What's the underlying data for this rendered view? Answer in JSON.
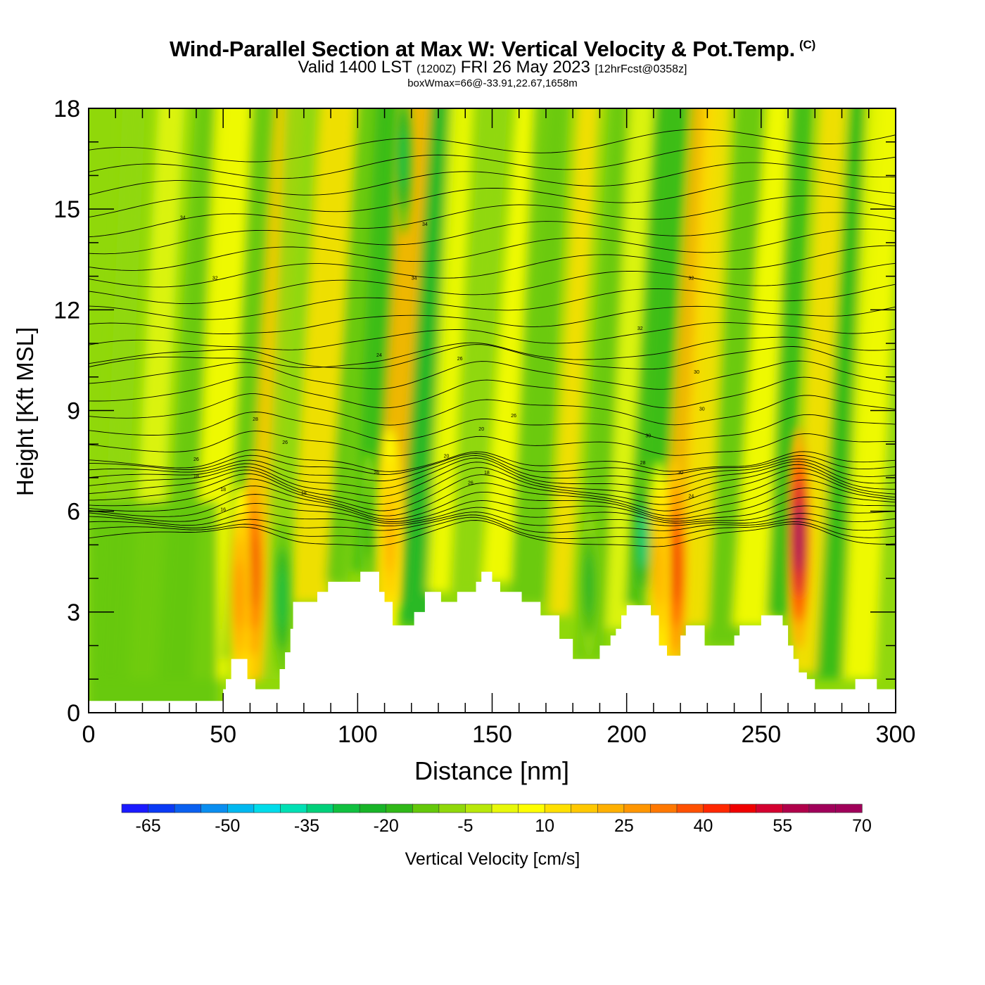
{
  "chart_data": {
    "type": "heatmap",
    "title": "Wind-Parallel Section at Max W: Vertical Velocity & Pot.Temp.",
    "title_mark": "(C)",
    "subtitle": {
      "valid": "Valid 1400 LST",
      "utc": "(1200Z)",
      "date": "FRI 26 May 2023",
      "fcst": "[12hrFcst@0358z]"
    },
    "annotation": "boxWmax=66@-33.91,22.67,1658m",
    "xlabel": "Distance [nm]",
    "ylabel": "Height [Kft MSL]",
    "xlim": [
      0,
      300
    ],
    "ylim": [
      0,
      18
    ],
    "x_ticks": [
      0,
      50,
      100,
      150,
      200,
      250,
      300
    ],
    "y_ticks": [
      0,
      3,
      6,
      9,
      12,
      15,
      18
    ],
    "colorbar": {
      "label": "Vertical Velocity [cm/s]",
      "min": -70,
      "max": 70,
      "step": 5,
      "tick_labels": [
        -65,
        -50,
        -35,
        -20,
        -5,
        10,
        25,
        40,
        55,
        70
      ],
      "colors": [
        "#1a1aff",
        "#0a3af5",
        "#0a60f0",
        "#0a8ef0",
        "#00b8f0",
        "#00dcea",
        "#00e0b4",
        "#00d07a",
        "#10c040",
        "#18b428",
        "#30b818",
        "#64c80a",
        "#90d80a",
        "#b8e80a",
        "#e8f80a",
        "#ffff00",
        "#ffe000",
        "#ffc800",
        "#ffb000",
        "#ff9600",
        "#ff7800",
        "#ff5000",
        "#ff2800",
        "#f00000",
        "#d40030",
        "#b0004a",
        "#a0005a"
      ]
    },
    "terrain_kft": [
      [
        0,
        0.35
      ],
      [
        49,
        0.35
      ],
      [
        50,
        0.7
      ],
      [
        51,
        1.0
      ],
      [
        53,
        1.6
      ],
      [
        58,
        1.6
      ],
      [
        59,
        1.0
      ],
      [
        62,
        0.7
      ],
      [
        66,
        0.7
      ],
      [
        69,
        0.7
      ],
      [
        71,
        1.3
      ],
      [
        73,
        1.8
      ],
      [
        75,
        2.5
      ],
      [
        76,
        3.3
      ],
      [
        84,
        3.3
      ],
      [
        85,
        3.6
      ],
      [
        86,
        3.6
      ],
      [
        89,
        3.9
      ],
      [
        100,
        3.9
      ],
      [
        101,
        4.2
      ],
      [
        107,
        4.2
      ],
      [
        108,
        3.6
      ],
      [
        110,
        3.3
      ],
      [
        113,
        2.6
      ],
      [
        120,
        2.6
      ],
      [
        121,
        3.0
      ],
      [
        124,
        3.0
      ],
      [
        125,
        3.6
      ],
      [
        130,
        3.6
      ],
      [
        131,
        3.3
      ],
      [
        136,
        3.3
      ],
      [
        137,
        3.6
      ],
      [
        143,
        3.6
      ],
      [
        144,
        3.9
      ],
      [
        146,
        4.2
      ],
      [
        149,
        4.2
      ],
      [
        150,
        3.9
      ],
      [
        153,
        3.6
      ],
      [
        160,
        3.6
      ],
      [
        161,
        3.3
      ],
      [
        166,
        3.3
      ],
      [
        168,
        2.9
      ],
      [
        173,
        2.9
      ],
      [
        175,
        2.2
      ],
      [
        179,
        2.2
      ],
      [
        180,
        1.6
      ],
      [
        188,
        1.6
      ],
      [
        190,
        2.0
      ],
      [
        192,
        2.0
      ],
      [
        194,
        2.3
      ],
      [
        196,
        2.5
      ],
      [
        198,
        2.9
      ],
      [
        200,
        3.2
      ],
      [
        208,
        3.2
      ],
      [
        209,
        2.9
      ],
      [
        212,
        2.0
      ],
      [
        214,
        2.0
      ],
      [
        215,
        1.7
      ],
      [
        219,
        1.7
      ],
      [
        220,
        2.3
      ],
      [
        222,
        2.6
      ],
      [
        227,
        2.6
      ],
      [
        229,
        2.0
      ],
      [
        238,
        2.0
      ],
      [
        240,
        2.3
      ],
      [
        242,
        2.6
      ],
      [
        248,
        2.6
      ],
      [
        250,
        2.9
      ],
      [
        255,
        2.9
      ],
      [
        258,
        2.6
      ],
      [
        260,
        2.0
      ],
      [
        262,
        1.6
      ],
      [
        264,
        1.2
      ],
      [
        267,
        1.0
      ],
      [
        270,
        0.7
      ],
      [
        275,
        0.7
      ],
      [
        283,
        0.7
      ],
      [
        285,
        1.0
      ],
      [
        292,
        1.0
      ],
      [
        293,
        0.7
      ],
      [
        300,
        0.7
      ]
    ],
    "theta_levels_C": [
      14,
      16,
      18,
      20,
      22,
      24,
      26,
      28,
      30,
      32,
      34
    ],
    "theta_labels": [
      "18",
      "18",
      "16",
      "18",
      "26",
      "26",
      "18",
      "26",
      "20",
      "20",
      "26",
      "26",
      "24",
      "26",
      "28",
      "24",
      "30",
      "28",
      "30",
      "30",
      "30",
      "32",
      "32",
      "32",
      "34",
      "34",
      "34"
    ],
    "updraft_cores_cm_s": [
      {
        "x_nm": 61,
        "z_kft": 4.2,
        "w": 45
      },
      {
        "x_nm": 218,
        "z_kft": 4.3,
        "w": 46
      },
      {
        "x_nm": 264,
        "z_kft": 5.2,
        "w": 60
      },
      {
        "x_nm": 56,
        "z_kft": 3.5,
        "w": 28
      },
      {
        "x_nm": 212,
        "z_kft": 4.2,
        "w": 22
      },
      {
        "x_nm": 112,
        "z_kft": 5.2,
        "w": 22
      }
    ],
    "downdraft_cores_cm_s": [
      {
        "x_nm": 72,
        "z_kft": 3.4,
        "w": -30
      },
      {
        "x_nm": 206,
        "z_kft": 5.2,
        "w": -35
      },
      {
        "x_nm": 186,
        "z_kft": 3.8,
        "w": -22
      },
      {
        "x_nm": 117,
        "z_kft": 16.5,
        "w": -30
      },
      {
        "x_nm": 104,
        "z_kft": 5.5,
        "w": -18
      }
    ],
    "grid": false
  }
}
